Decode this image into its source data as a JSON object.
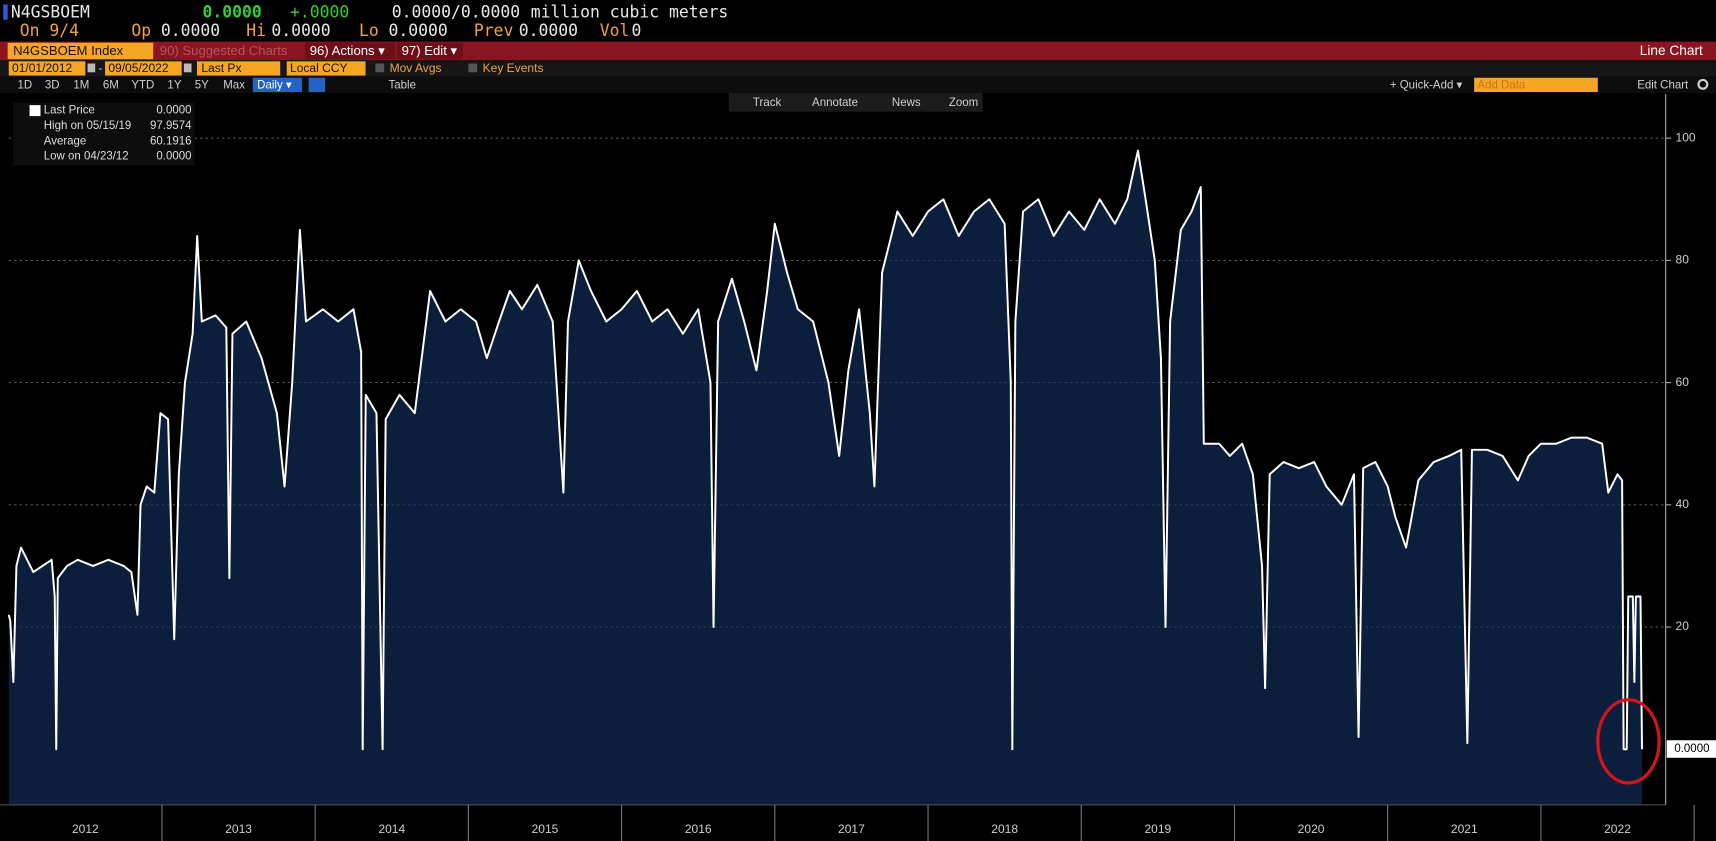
{
  "ui": {
    "ticker": "N4GSBOEM",
    "last": "0.0000",
    "change": "+.0000",
    "bidask": "0.0000/0.0000",
    "units": "million cubic meters",
    "row2": [
      "On 9/4",
      "Op",
      "0.0000",
      "Hi",
      "0.0000",
      "Lo",
      "0.0000",
      "Prev",
      "0.0000",
      "Vol",
      "0"
    ],
    "security": "N4GSBOEM Index",
    "suggested": "90) Suggested Charts",
    "actions": "96) Actions ▾",
    "edit": "97) Edit ▾",
    "chart_kind": "Line Chart",
    "start_date": "01/01/2012",
    "dash": "-",
    "end_date": "09/05/2022",
    "field": "Last Px",
    "currency": "Local CCY",
    "mov_avgs": "Mov Avgs",
    "key_events": "Key Events",
    "periods": [
      "1D",
      "3D",
      "1M",
      "6M",
      "YTD",
      "1Y",
      "5Y",
      "Max"
    ],
    "frequency": "Daily ▾",
    "table": "Table",
    "quick_add": "+ Quick-Add ▾",
    "add_data": "Add Data",
    "edit_chart": "Edit Chart",
    "tools": [
      "Track",
      "Annotate",
      "News",
      "Zoom"
    ],
    "legend": [
      [
        "Last Price",
        "0.0000"
      ],
      [
        "High on 05/15/19",
        "97.9574"
      ],
      [
        "Average",
        "60.1916"
      ],
      [
        "Low on 04/23/12",
        "0.0000"
      ]
    ],
    "last_marker": "0.0000"
  },
  "chart_data": {
    "type": "area",
    "xlim": [
      2012,
      2022.8
    ],
    "ylim": [
      -9.1,
      107.2
    ],
    "yticks": [
      20,
      40,
      60,
      80,
      100
    ],
    "grid": true,
    "xticks": [
      {
        "value": 2012.5,
        "label": "2012"
      },
      {
        "value": 2013.5,
        "label": "2013"
      },
      {
        "value": 2014.5,
        "label": "2014"
      },
      {
        "value": 2015.5,
        "label": "2015"
      },
      {
        "value": 2016.5,
        "label": "2016"
      },
      {
        "value": 2017.5,
        "label": "2017"
      },
      {
        "value": 2018.5,
        "label": "2018"
      },
      {
        "value": 2019.5,
        "label": "2019"
      },
      {
        "value": 2020.5,
        "label": "2020"
      },
      {
        "value": 2021.5,
        "label": "2021"
      },
      {
        "value": 2022.5,
        "label": "2022"
      }
    ],
    "x": [
      2012.0,
      2012.01,
      2012.03,
      2012.05,
      2012.08,
      2012.12,
      2012.16,
      2012.22,
      2012.28,
      2012.3,
      2012.31,
      2012.32,
      2012.38,
      2012.45,
      2012.55,
      2012.65,
      2012.75,
      2012.8,
      2012.84,
      2012.86,
      2012.9,
      2012.95,
      2012.99,
      2013.04,
      2013.08,
      2013.11,
      2013.15,
      2013.2,
      2013.23,
      2013.26,
      2013.35,
      2013.42,
      2013.44,
      2013.46,
      2013.55,
      2013.65,
      2013.75,
      2013.8,
      2013.85,
      2013.9,
      2013.94,
      2014.05,
      2014.15,
      2014.25,
      2014.3,
      2014.31,
      2014.33,
      2014.4,
      2014.44,
      2014.46,
      2014.55,
      2014.65,
      2014.75,
      2014.85,
      2014.95,
      2015.05,
      2015.12,
      2015.2,
      2015.27,
      2015.35,
      2015.45,
      2015.55,
      2015.62,
      2015.65,
      2015.72,
      2015.8,
      2015.9,
      2016.0,
      2016.1,
      2016.2,
      2016.3,
      2016.4,
      2016.5,
      2016.58,
      2016.6,
      2016.63,
      2016.72,
      2016.8,
      2016.88,
      2016.95,
      2017.0,
      2017.08,
      2017.15,
      2017.25,
      2017.35,
      2017.42,
      2017.48,
      2017.55,
      2017.62,
      2017.65,
      2017.7,
      2017.8,
      2017.9,
      2018.0,
      2018.1,
      2018.2,
      2018.3,
      2018.4,
      2018.5,
      2018.54,
      2018.55,
      2018.57,
      2018.62,
      2018.72,
      2018.82,
      2018.92,
      2019.02,
      2019.12,
      2019.22,
      2019.3,
      2019.37,
      2019.42,
      2019.48,
      2019.52,
      2019.55,
      2019.58,
      2019.65,
      2019.72,
      2019.78,
      2019.8,
      2019.9,
      2019.97,
      2020.05,
      2020.12,
      2020.18,
      2020.2,
      2020.23,
      2020.32,
      2020.42,
      2020.52,
      2020.6,
      2020.7,
      2020.78,
      2020.81,
      2020.84,
      2020.92,
      2021.0,
      2021.05,
      2021.12,
      2021.2,
      2021.3,
      2021.4,
      2021.48,
      2021.52,
      2021.55,
      2021.65,
      2021.75,
      2021.85,
      2021.92,
      2022.0,
      2022.1,
      2022.2,
      2022.3,
      2022.4,
      2022.44,
      2022.5,
      2022.53,
      2022.54,
      2022.56,
      2022.57,
      2022.6,
      2022.61,
      2022.62,
      2022.65,
      2022.66
    ],
    "series": [
      {
        "name": "Last Price",
        "color": "#ffffff",
        "fill": "#0b1f3d",
        "values": [
          22,
          21,
          11,
          30,
          33,
          31,
          29,
          30,
          31,
          25,
          0,
          28,
          30,
          31,
          30,
          31,
          30,
          29,
          22,
          40,
          43,
          42,
          55,
          54,
          18,
          45,
          60,
          68,
          84,
          70,
          71,
          69,
          28,
          68,
          70,
          64,
          55,
          43,
          60,
          85,
          70,
          72,
          70,
          72,
          65,
          0,
          58,
          55,
          0,
          54,
          58,
          55,
          75,
          70,
          72,
          70,
          64,
          70,
          75,
          72,
          76,
          70,
          42,
          70,
          80,
          75,
          70,
          72,
          75,
          70,
          72,
          68,
          72,
          60,
          20,
          70,
          77,
          70,
          62,
          75,
          86,
          78,
          72,
          70,
          60,
          48,
          62,
          72,
          55,
          43,
          78,
          88,
          84,
          88,
          90,
          84,
          88,
          90,
          86,
          60,
          0,
          70,
          88,
          90,
          84,
          88,
          85,
          90,
          86,
          90,
          97.96,
          90,
          80,
          64,
          20,
          70,
          85,
          88,
          92,
          50,
          50,
          48,
          50,
          45,
          30,
          10,
          45,
          47,
          46,
          47,
          43,
          40,
          45,
          2,
          46,
          47,
          43,
          38,
          33,
          44,
          47,
          48,
          49,
          1,
          49,
          49,
          48,
          44,
          48,
          50,
          50,
          51,
          51,
          50,
          42,
          45,
          44,
          0,
          0,
          25,
          25,
          11,
          25,
          25,
          0
        ]
      }
    ]
  }
}
